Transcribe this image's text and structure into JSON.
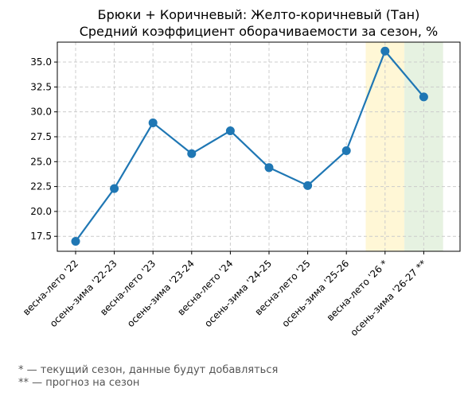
{
  "chart_data": {
    "type": "line",
    "title_line1": "Брюки + Коричневый: Желто-коричневый (Тан)",
    "title_line2": "Средний коэффициент оборачиваемости за сезон, %",
    "xlabel": "",
    "ylabel": "",
    "categories": [
      "весна-лето '22",
      "осень-зима '22-23",
      "весна-лето '23",
      "осень-зима '23-24",
      "весна-лето '24",
      "осень-зима '24-25",
      "весна-лето '25",
      "осень-зима '25-26",
      "весна-лето '26 *",
      "осень-зима '26-27 **"
    ],
    "series": [
      {
        "values": [
          17.0,
          22.3,
          28.9,
          25.8,
          28.1,
          24.4,
          22.6,
          26.1,
          36.1,
          31.5
        ],
        "color": "#1f77b4"
      }
    ],
    "ylim": [
      16.0,
      37.0
    ],
    "yticks": [
      "17.5",
      "20.0",
      "22.5",
      "25.0",
      "27.5",
      "30.0",
      "32.5",
      "35.0"
    ],
    "grid": true,
    "highlights": [
      {
        "category_index": 8,
        "color": "#fff7d6",
        "meaning": "current season"
      },
      {
        "category_index": 9,
        "color": "#e6f2e1",
        "meaning": "forecast"
      }
    ],
    "notes": [
      "* — текущий сезон, данные будут добавляться",
      "** — прогноз на сезон"
    ]
  }
}
